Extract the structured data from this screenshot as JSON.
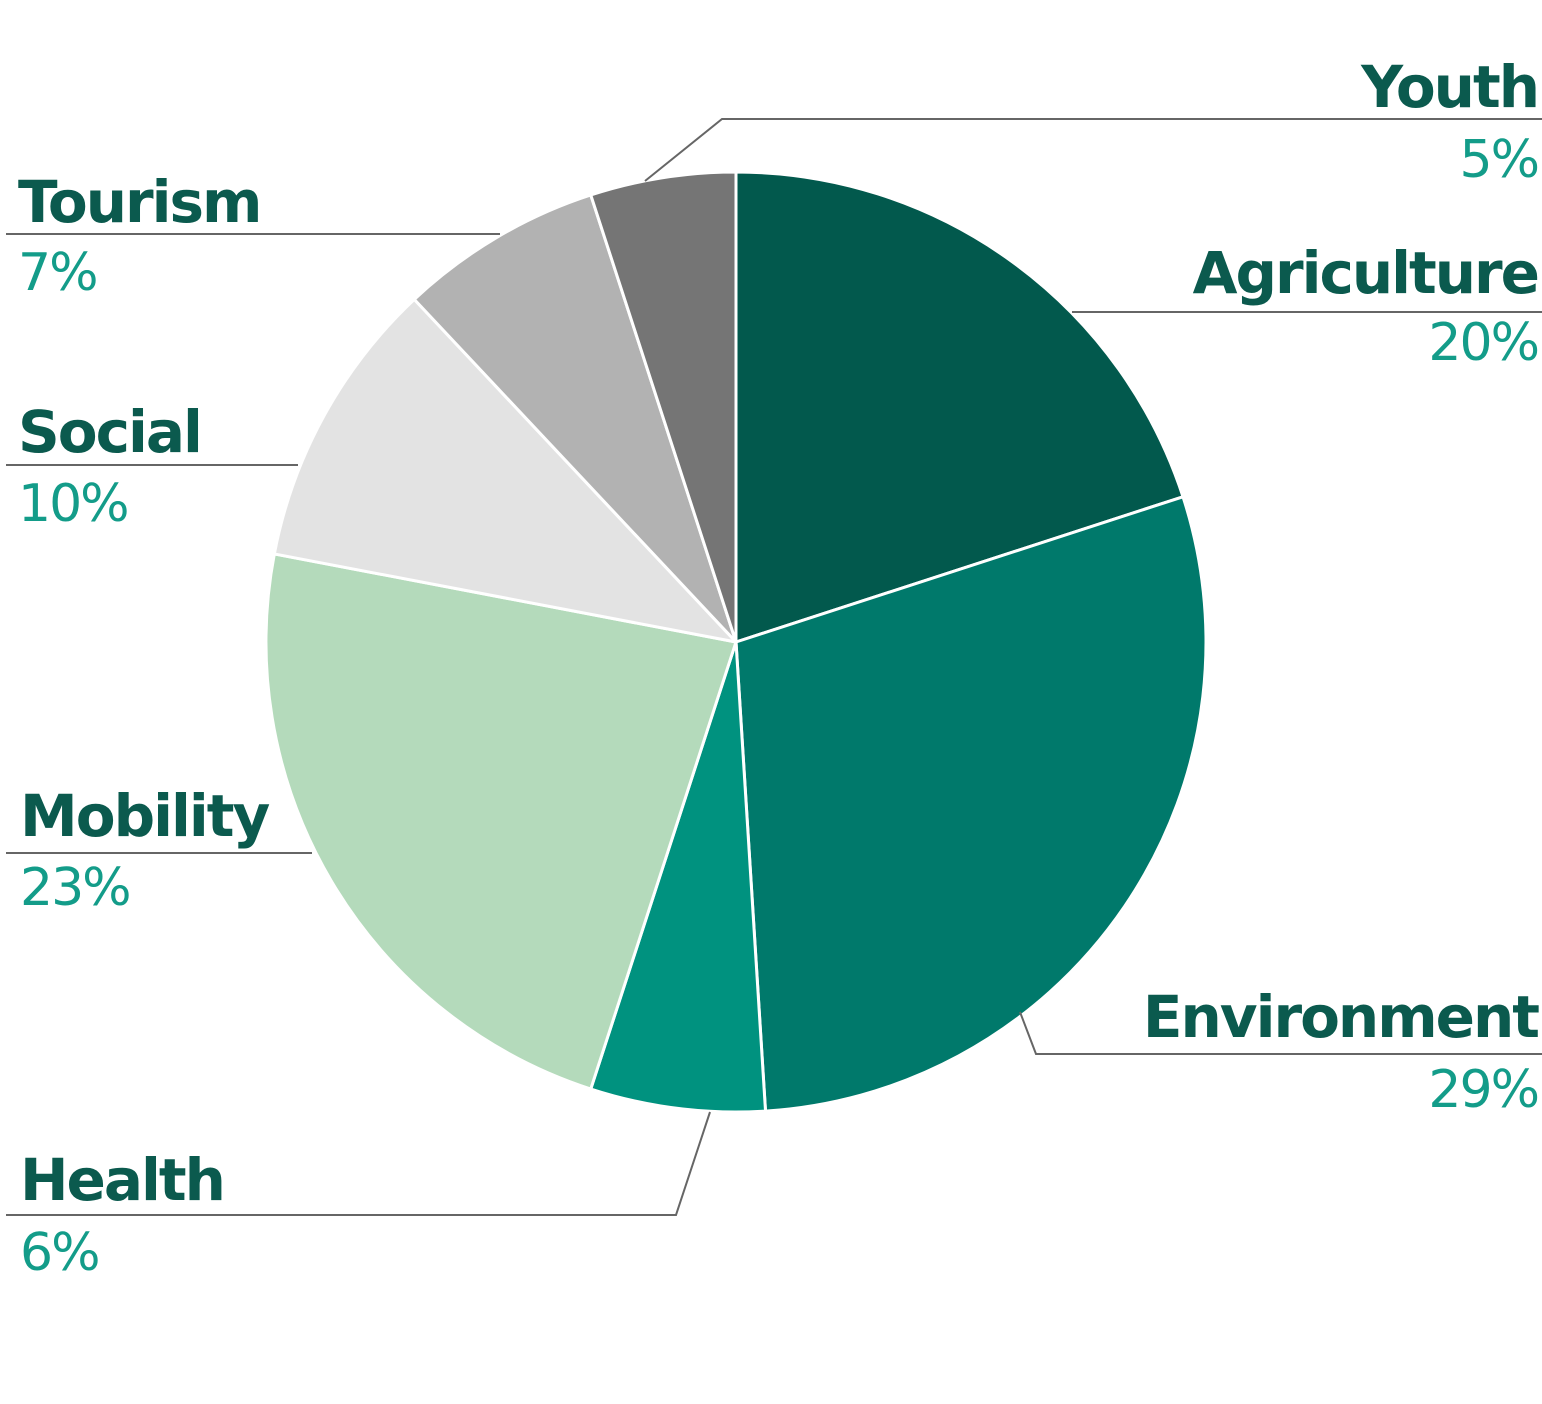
{
  "chart_data": {
    "type": "pie",
    "slices": [
      {
        "label": "Agriculture",
        "value": 20,
        "value_label": "20%",
        "color": "#02594d"
      },
      {
        "label": "Environment",
        "value": 29,
        "value_label": "29%",
        "color": "#00796b"
      },
      {
        "label": "Health",
        "value": 6,
        "value_label": "6%",
        "color": "#00927f"
      },
      {
        "label": "Mobility",
        "value": 23,
        "value_label": "23%",
        "color": "#b4dabb"
      },
      {
        "label": "Social",
        "value": 10,
        "value_label": "10%",
        "color": "#e3e3e3"
      },
      {
        "label": "Tourism",
        "value": 7,
        "value_label": "7%",
        "color": "#b2b2b2"
      },
      {
        "label": "Youth",
        "value": 5,
        "value_label": "5%",
        "color": "#757575"
      }
    ],
    "start": "12 o'clock",
    "direction": "clockwise",
    "label_color": "#0b5a4e",
    "value_color": "#139c89",
    "leader_color": "#666666",
    "separator_color": "#ffffff"
  }
}
